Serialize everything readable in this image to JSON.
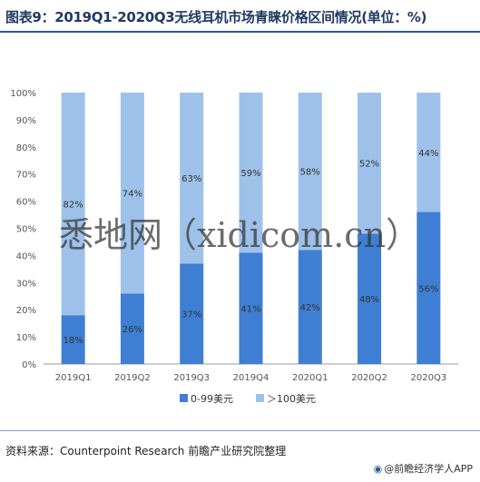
{
  "header": {
    "title": "图表9：2019Q1-2020Q3无线耳机市场青睐价格区间情况(单位：%)"
  },
  "footer": {
    "source": "资料来源：Counterpoint Research 前瞻产业研究院整理",
    "brand": "@前瞻经济学人APP",
    "brand_icon": "brand-logo-icon"
  },
  "watermark": {
    "text": "悉地网（xidicom.cn）"
  },
  "colors": {
    "low": "#3f7fd3",
    "high": "#9ec1ea",
    "axis": "#999999",
    "title": "#1f3a63"
  },
  "chart_data": {
    "type": "bar",
    "stacked": true,
    "categories": [
      "2019Q1",
      "2019Q2",
      "2019Q3",
      "2019Q4",
      "2020Q1",
      "2020Q2",
      "2020Q3"
    ],
    "series": [
      {
        "name": "0-99美元",
        "values": [
          18,
          26,
          37,
          41,
          42,
          48,
          56
        ],
        "labels": [
          "18%",
          "26%",
          "37%",
          "41%",
          "42%",
          "48%",
          "56%"
        ],
        "color": "#3f7fd3"
      },
      {
        "name": "＞100美元",
        "values": [
          82,
          74,
          63,
          59,
          58,
          52,
          44
        ],
        "labels": [
          "82%",
          "74%",
          "63%",
          "59%",
          "58%",
          "52%",
          "44%"
        ],
        "color": "#9ec1ea"
      }
    ],
    "yticks": [
      "0%",
      "10%",
      "20%",
      "30%",
      "40%",
      "50%",
      "60%",
      "70%",
      "80%",
      "90%",
      "100%"
    ],
    "ylim": [
      0,
      100
    ],
    "legend": "bottom",
    "grid": false
  }
}
